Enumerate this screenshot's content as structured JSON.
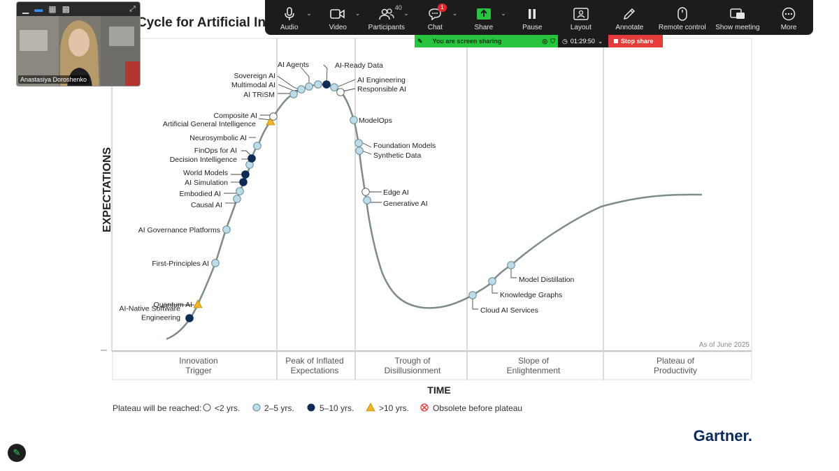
{
  "toolbar": {
    "items": [
      {
        "label": "Audio",
        "icon": "microphone-icon"
      },
      {
        "label": "Video",
        "icon": "camera-icon"
      },
      {
        "label": "Participants",
        "icon": "participants-icon",
        "count": "40"
      },
      {
        "label": "Chat",
        "icon": "chat-icon",
        "badge": "1"
      },
      {
        "label": "Share",
        "icon": "share-icon"
      },
      {
        "label": "Pause",
        "icon": "pause-icon"
      },
      {
        "label": "Layout",
        "icon": "layout-icon"
      },
      {
        "label": "Annotate",
        "icon": "pencil-icon"
      },
      {
        "label": "Remote control",
        "icon": "mouse-icon"
      },
      {
        "label": "Show meeting",
        "icon": "show-meeting-icon"
      },
      {
        "label": "More",
        "icon": "more-icon"
      }
    ]
  },
  "sharebar": {
    "status": "You are screen sharing",
    "timer": "01:29:50",
    "stop_label": "Stop share"
  },
  "video": {
    "participant_name": "Anastasiya Doroshenko"
  },
  "colors": {
    "under2": "#ffffff",
    "y2to5": "#bcdcea",
    "y5to10": "#0e2a55",
    "over10": "#f0b323",
    "curve": "#7d8c86",
    "zoom_green": "#28c43f",
    "stop_red": "#e43b3b"
  },
  "chart_data": {
    "type": "hype-cycle",
    "title": "Cycle for Artificial In",
    "ylabel": "EXPECTATIONS",
    "xlabel": "TIME",
    "as_of": "As of June 2025",
    "brand": "Gartner.",
    "phases": [
      {
        "line1": "Innovation",
        "line2": "Trigger"
      },
      {
        "line1": "Peak of Inflated",
        "line2": "Expectations"
      },
      {
        "line1": "Trough of",
        "line2": "Disillusionment"
      },
      {
        "line1": "Slope of",
        "line2": "Enlightenment"
      },
      {
        "line1": "Plateau of",
        "line2": "Productivity"
      }
    ],
    "legend": {
      "prefix": "Plateau will be reached:",
      "items": [
        {
          "label": "<2 yrs.",
          "cat": "under2"
        },
        {
          "label": "2–5 yrs.",
          "cat": "y2to5"
        },
        {
          "label": "5–10 yrs.",
          "cat": "y5to10"
        },
        {
          "label": ">10 yrs.",
          "cat": "over10"
        },
        {
          "label": "Obsolete before plateau",
          "cat": "obsolete"
        }
      ]
    },
    "technologies": [
      {
        "name": "AI-Native Software Engineering",
        "lines": [
          "AI-Native Software",
          "Engineering"
        ],
        "cat": "y5to10",
        "phase": "Innovation Trigger"
      },
      {
        "name": "Quantum AI",
        "lines": [
          "Quantum AI"
        ],
        "cat": "over10",
        "phase": "Innovation Trigger"
      },
      {
        "name": "First-Principles AI",
        "lines": [
          "First-Principles AI"
        ],
        "cat": "y2to5",
        "phase": "Innovation Trigger"
      },
      {
        "name": "AI Governance Platforms",
        "lines": [
          "AI Governance Platforms"
        ],
        "cat": "y2to5",
        "phase": "Innovation Trigger"
      },
      {
        "name": "Causal AI",
        "lines": [
          "Causal AI"
        ],
        "cat": "y2to5",
        "phase": "Innovation Trigger"
      },
      {
        "name": "Embodied AI",
        "lines": [
          "Embodied AI"
        ],
        "cat": "y2to5",
        "phase": "Innovation Trigger"
      },
      {
        "name": "AI Simulation",
        "lines": [
          "AI Simulation"
        ],
        "cat": "y5to10",
        "phase": "Innovation Trigger"
      },
      {
        "name": "World Models",
        "lines": [
          "World Models"
        ],
        "cat": "y5to10",
        "phase": "Innovation Trigger"
      },
      {
        "name": "Decision Intelligence",
        "lines": [
          "Decision Intelligence"
        ],
        "cat": "y2to5",
        "phase": "Innovation Trigger"
      },
      {
        "name": "FinOps for AI",
        "lines": [
          "FinOps for AI"
        ],
        "cat": "y5to10",
        "phase": "Innovation Trigger"
      },
      {
        "name": "Neurosymbolic AI",
        "lines": [
          "Neurosymbolic AI"
        ],
        "cat": "y2to5",
        "phase": "Innovation Trigger"
      },
      {
        "name": "Artificial General Intelligence",
        "lines": [
          "Artificial General Intelligence"
        ],
        "cat": "over10",
        "phase": "Innovation Trigger"
      },
      {
        "name": "Composite AI",
        "lines": [
          "Composite AI"
        ],
        "cat": "under2",
        "phase": "Innovation Trigger"
      },
      {
        "name": "AI TRiSM",
        "lines": [
          "AI TRiSM"
        ],
        "cat": "y2to5",
        "phase": "Peak of Inflated Expectations"
      },
      {
        "name": "Multimodal AI",
        "lines": [
          "Multimodal AI"
        ],
        "cat": "y2to5",
        "phase": "Peak of Inflated Expectations"
      },
      {
        "name": "Sovereign AI",
        "lines": [
          "Sovereign AI"
        ],
        "cat": "y2to5",
        "phase": "Peak of Inflated Expectations"
      },
      {
        "name": "AI Agents",
        "lines": [
          "AI Agents"
        ],
        "cat": "y2to5",
        "phase": "Peak of Inflated Expectations"
      },
      {
        "name": "AI-Ready Data",
        "lines": [
          "AI-Ready Data"
        ],
        "cat": "y5to10",
        "phase": "Peak of Inflated Expectations"
      },
      {
        "name": "AI Engineering",
        "lines": [
          "AI Engineering"
        ],
        "cat": "y2to5",
        "phase": "Peak of Inflated Expectations"
      },
      {
        "name": "Responsible AI",
        "lines": [
          "Responsible AI"
        ],
        "cat": "under2",
        "phase": "Peak of Inflated Expectations"
      },
      {
        "name": "ModelOps",
        "lines": [
          "ModelOps"
        ],
        "cat": "y2to5",
        "phase": "Trough of Disillusionment"
      },
      {
        "name": "Foundation Models",
        "lines": [
          "Foundation Models"
        ],
        "cat": "y2to5",
        "phase": "Trough of Disillusionment"
      },
      {
        "name": "Synthetic Data",
        "lines": [
          "Synthetic Data"
        ],
        "cat": "y2to5",
        "phase": "Trough of Disillusionment"
      },
      {
        "name": "Edge AI",
        "lines": [
          "Edge AI"
        ],
        "cat": "under2",
        "phase": "Trough of Disillusionment"
      },
      {
        "name": "Generative AI",
        "lines": [
          "Generative AI"
        ],
        "cat": "y2to5",
        "phase": "Trough of Disillusionment"
      },
      {
        "name": "Cloud AI Services",
        "lines": [
          "Cloud AI Services"
        ],
        "cat": "y2to5",
        "phase": "Slope of Enlightenment"
      },
      {
        "name": "Knowledge Graphs",
        "lines": [
          "Knowledge Graphs"
        ],
        "cat": "y2to5",
        "phase": "Slope of Enlightenment"
      },
      {
        "name": "Model Distillation",
        "lines": [
          "Model Distillation"
        ],
        "cat": "y2to5",
        "phase": "Slope of Enlightenment"
      }
    ]
  }
}
